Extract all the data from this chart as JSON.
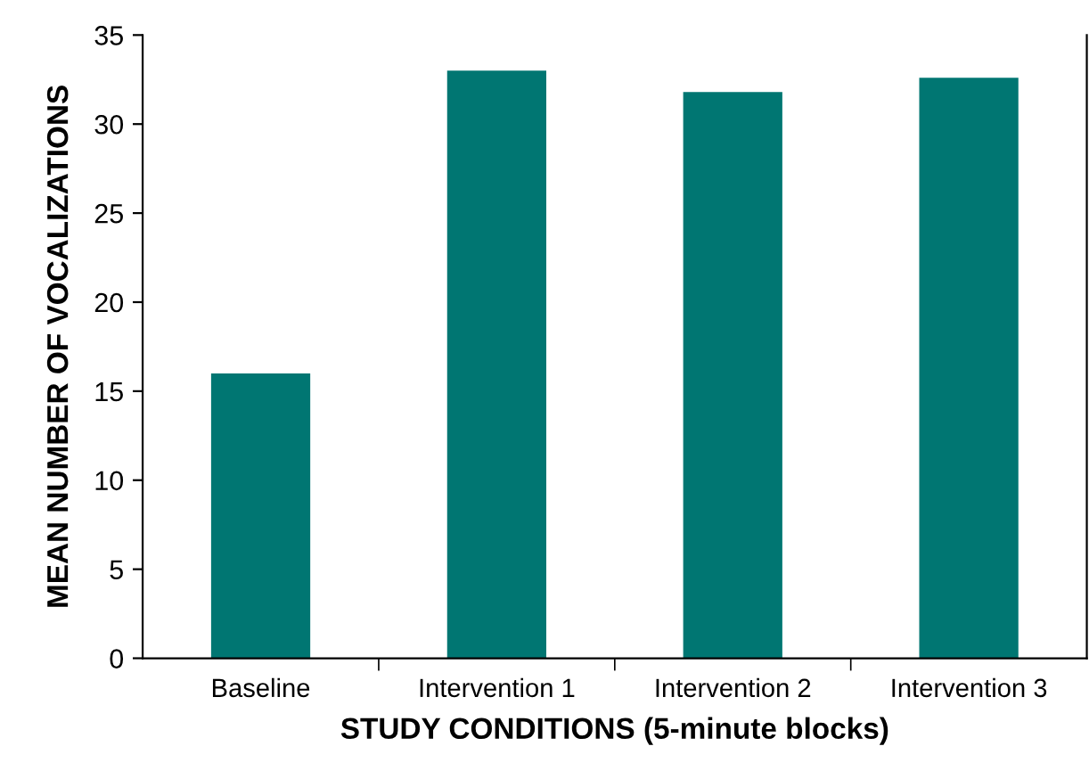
{
  "chart_data": {
    "type": "bar",
    "xlabel": "STUDY CONDITIONS (5-minute blocks)",
    "ylabel": "MEAN NUMBER OF VOCALIZATIONS",
    "categories": [
      "Baseline",
      "Intervention 1",
      "Intervention 2",
      "Intervention 3"
    ],
    "values": [
      16,
      33,
      31.8,
      32.6
    ],
    "color": "#007672",
    "ylim": [
      0,
      35
    ],
    "yticks": [
      0,
      5,
      10,
      15,
      20,
      25,
      30,
      35
    ],
    "grid": false,
    "legend": false
  }
}
